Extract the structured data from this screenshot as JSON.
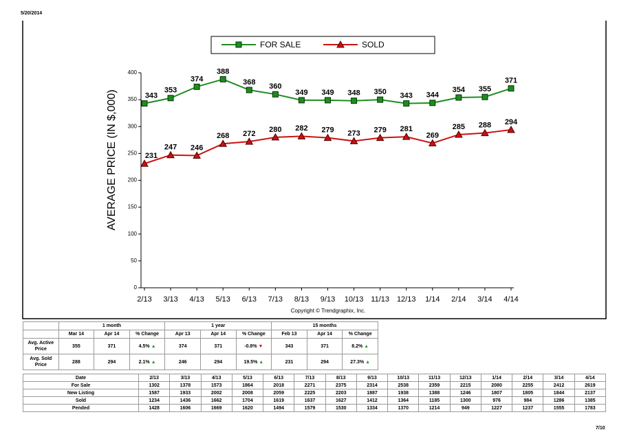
{
  "header": {
    "date": "5/20/2014",
    "page": "7/10"
  },
  "chart_data": {
    "type": "line",
    "y_label": "AVERAGE PRICE (IN $,000)",
    "copyright": "Copyright © Trendgraphix, Inc.",
    "categories": [
      "2/13",
      "3/13",
      "4/13",
      "5/13",
      "6/13",
      "7/13",
      "8/13",
      "9/13",
      "10/13",
      "11/13",
      "12/13",
      "1/14",
      "2/14",
      "3/14",
      "4/14"
    ],
    "series": [
      {
        "name": "FOR SALE",
        "color": "#1e8c1e",
        "marker": "square",
        "values": [
          343,
          353,
          374,
          388,
          368,
          360,
          349,
          349,
          348,
          350,
          343,
          344,
          354,
          355,
          371
        ]
      },
      {
        "name": "SOLD",
        "color": "#cc1010",
        "marker": "triangle",
        "values": [
          231,
          247,
          246,
          268,
          272,
          280,
          282,
          279,
          273,
          279,
          281,
          269,
          285,
          288,
          294
        ]
      }
    ],
    "ylim": [
      0,
      400
    ],
    "yticks": [
      0,
      50,
      100,
      150,
      200,
      250,
      300,
      350,
      400
    ]
  },
  "summary": {
    "groups": [
      "1 month",
      "1 year",
      "15 months"
    ],
    "columns": [
      "Mar 14",
      "Apr 14",
      "% Change",
      "Apr 13",
      "Apr 14",
      "% Change",
      "Feb 13",
      "Apr 14",
      "% Change"
    ],
    "rows": [
      {
        "label": "Avg. Active Price",
        "cells": [
          355,
          371,
          "4.5%",
          374,
          371,
          "-0.8%",
          343,
          371,
          "8.2%"
        ]
      },
      {
        "label": "Avg. Sold Price",
        "cells": [
          288,
          294,
          "2.1%",
          246,
          294,
          "19.5%",
          231,
          294,
          "27.3%"
        ]
      }
    ]
  },
  "table": {
    "date_label": "Date",
    "rows": [
      {
        "label": "For Sale",
        "values": [
          1302,
          1378,
          1573,
          1864,
          2018,
          2271,
          2375,
          2314,
          2538,
          2359,
          2215,
          2080,
          2255,
          2412,
          2619
        ]
      },
      {
        "label": "New Listing",
        "values": [
          1587,
          1933,
          2002,
          2008,
          2059,
          2225,
          2203,
          1887,
          1938,
          1388,
          1246,
          1807,
          1805,
          1844,
          2137
        ]
      },
      {
        "label": "Sold",
        "values": [
          1234,
          1436,
          1662,
          1704,
          1619,
          1637,
          1627,
          1412,
          1364,
          1185,
          1300,
          976,
          984,
          1286,
          1385
        ]
      },
      {
        "label": "Pended",
        "values": [
          1428,
          1606,
          1669,
          1620,
          1494,
          1579,
          1530,
          1334,
          1370,
          1214,
          949,
          1227,
          1237,
          1555,
          1783
        ]
      }
    ]
  }
}
